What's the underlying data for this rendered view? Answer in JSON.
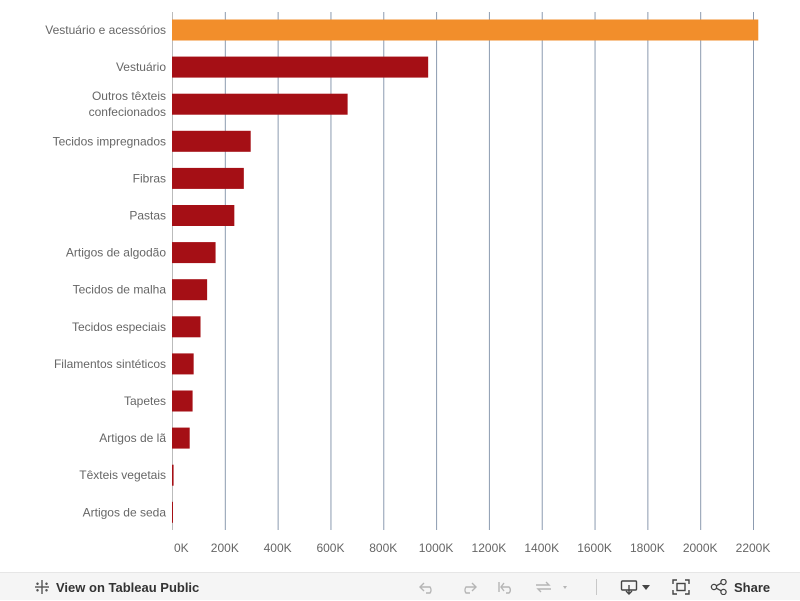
{
  "chart_data": {
    "type": "bar",
    "orientation": "horizontal",
    "categories": [
      [
        "Vestuário e acessórios"
      ],
      [
        "Vestuário"
      ],
      [
        "Outros têxteis",
        "confecionados"
      ],
      [
        "Tecidos impregnados"
      ],
      [
        "Fibras"
      ],
      [
        "Pastas"
      ],
      [
        "Artigos de algodão"
      ],
      [
        "Tecidos de malha"
      ],
      [
        "Tecidos especiais"
      ],
      [
        "Filamentos sintéticos"
      ],
      [
        "Tapetes"
      ],
      [
        "Artigos de lã"
      ],
      [
        "Têxteis vegetais"
      ],
      [
        "Artigos de seda"
      ]
    ],
    "values": [
      2220000,
      970000,
      665000,
      298000,
      272000,
      236000,
      165000,
      133000,
      108000,
      82000,
      78000,
      67000,
      6000,
      3000
    ],
    "highlight_index": 0,
    "xlim": [
      0,
      2200000
    ],
    "x_ticks": [
      0,
      200000,
      400000,
      600000,
      800000,
      1000000,
      1200000,
      1400000,
      1600000,
      1800000,
      2000000,
      2200000
    ],
    "x_tick_labels": [
      "0K",
      "200K",
      "400K",
      "600K",
      "800K",
      "1000K",
      "1200K",
      "1400K",
      "1600K",
      "1800K",
      "2000K",
      "2200K"
    ],
    "grid": true,
    "colors": {
      "highlight": "#f28e2b",
      "bar": "#a50f15",
      "grid": "#8c9bb0",
      "axis": "#bbbbbb",
      "text": "#666666"
    }
  },
  "toolbar": {
    "view_label": "View on Tableau Public",
    "share_label": "Share",
    "icons": {
      "view": "tableau-logo-icon",
      "undo": "undo-icon",
      "redo": "redo-icon",
      "revert": "revert-icon",
      "refresh": "refresh-icon",
      "download": "download-icon",
      "fullscreen": "fullscreen-icon",
      "share": "share-icon"
    }
  }
}
